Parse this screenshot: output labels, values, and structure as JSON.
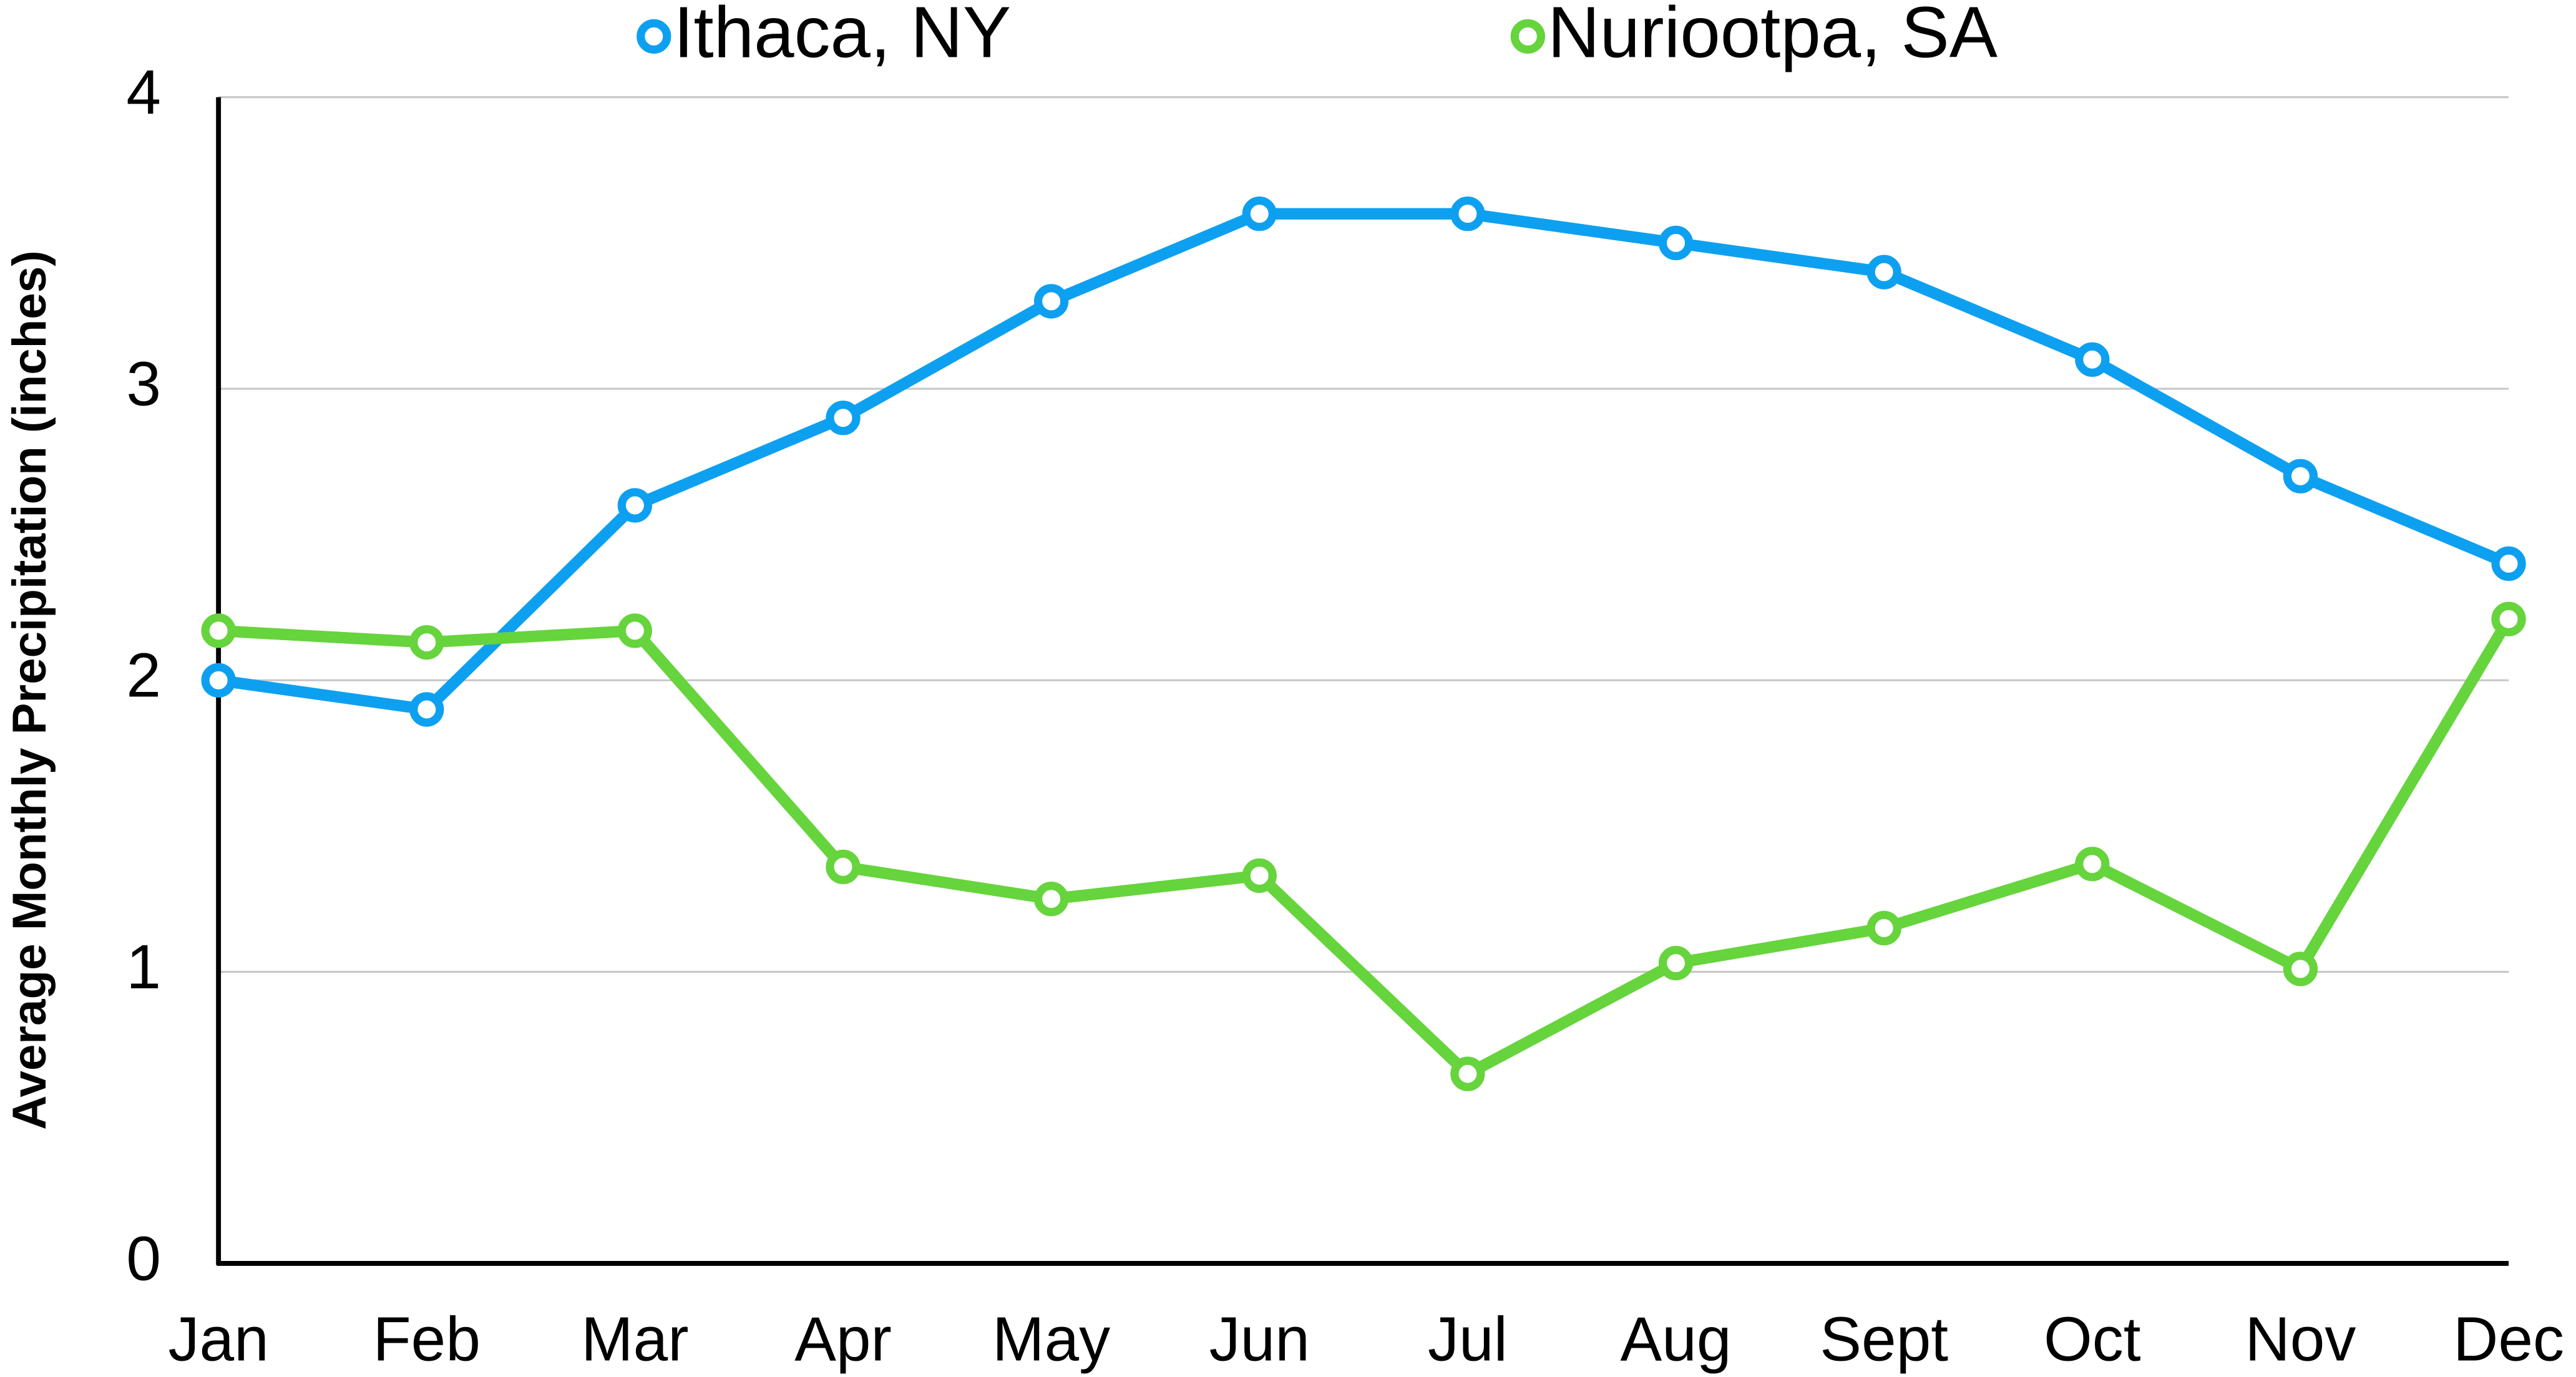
{
  "chart_data": {
    "type": "line",
    "y_axis_label": "Average Monthly Precipitation (inches)",
    "categories": [
      "Jan",
      "Feb",
      "Mar",
      "Apr",
      "May",
      "Jun",
      "Jul",
      "Aug",
      "Sept",
      "Oct",
      "Nov",
      "Dec"
    ],
    "series": [
      {
        "name": "Ithaca, NY",
        "color": "#0ea0f0",
        "values": [
          2.0,
          1.9,
          2.6,
          2.9,
          3.3,
          3.6,
          3.6,
          3.5,
          3.4,
          3.1,
          2.7,
          2.4
        ]
      },
      {
        "name": "Nuriootpa, SA",
        "color": "#66d43c",
        "values": [
          2.17,
          2.13,
          2.17,
          1.36,
          1.25,
          1.33,
          0.65,
          1.03,
          1.15,
          1.37,
          1.01,
          2.21
        ]
      }
    ],
    "ylim": [
      0,
      4
    ],
    "yticks": [
      0,
      1,
      2,
      3,
      4
    ],
    "grid": true,
    "legend": "top"
  }
}
